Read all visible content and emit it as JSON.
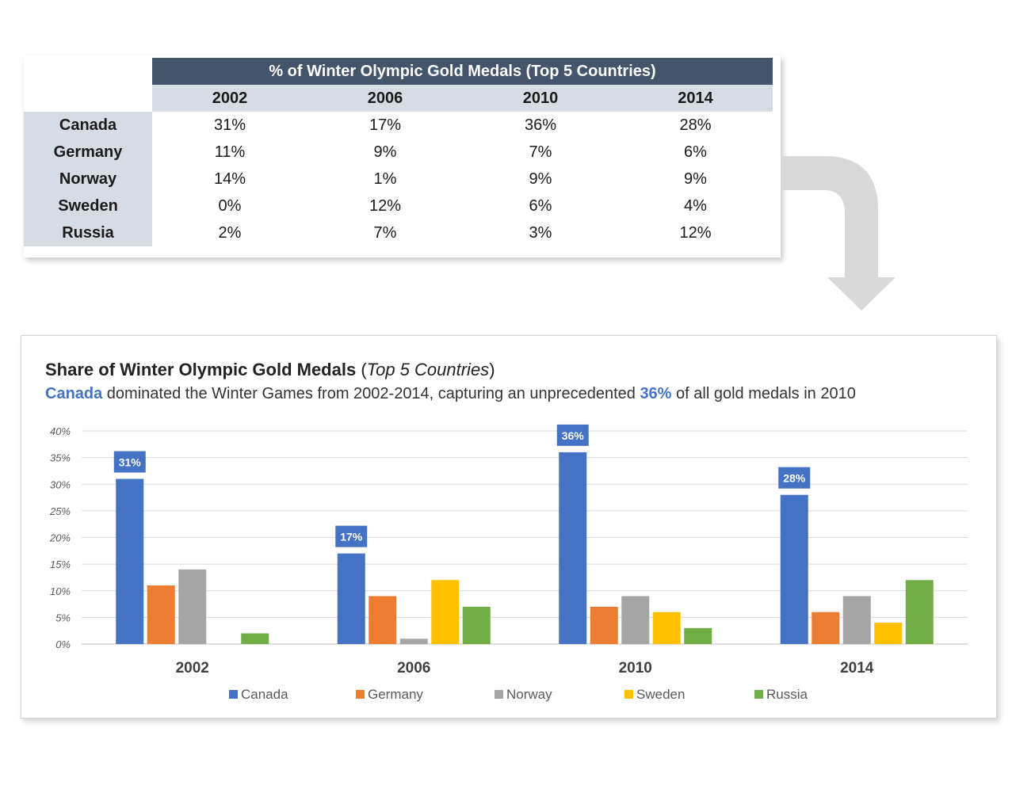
{
  "table": {
    "title": "% of Winter Olympic Gold Medals (Top 5 Countries)",
    "years": [
      "2002",
      "2006",
      "2010",
      "2014"
    ],
    "rows": [
      {
        "country": "Canada",
        "values": [
          "31%",
          "17%",
          "36%",
          "28%"
        ]
      },
      {
        "country": "Germany",
        "values": [
          "11%",
          "9%",
          "7%",
          "6%"
        ]
      },
      {
        "country": "Norway",
        "values": [
          "14%",
          "1%",
          "9%",
          "9%"
        ]
      },
      {
        "country": "Sweden",
        "values": [
          "0%",
          "12%",
          "6%",
          "4%"
        ]
      },
      {
        "country": "Russia",
        "values": [
          "2%",
          "7%",
          "3%",
          "12%"
        ]
      }
    ]
  },
  "chart_header": {
    "title_main": "Share of Winter Olympic Gold Medals",
    "title_open": " (",
    "title_sub": "Top 5 Countries",
    "title_close": ")",
    "caption_lead": "Canada",
    "caption_mid": " dominated the Winter Games from 2002-2014, capturing an unprecedented ",
    "caption_value": "36%",
    "caption_tail": " of all gold medals in 2010"
  },
  "chart_data": {
    "type": "bar",
    "title": "Share of Winter Olympic Gold Medals (Top 5 Countries)",
    "categories": [
      "2002",
      "2006",
      "2010",
      "2014"
    ],
    "series": [
      {
        "name": "Canada",
        "color": "#4472c4",
        "values": [
          31,
          17,
          36,
          28
        ]
      },
      {
        "name": "Germany",
        "color": "#ed7d31",
        "values": [
          11,
          9,
          7,
          6
        ]
      },
      {
        "name": "Norway",
        "color": "#a5a5a5",
        "values": [
          14,
          1,
          9,
          9
        ]
      },
      {
        "name": "Sweden",
        "color": "#ffc000",
        "values": [
          0,
          12,
          6,
          4
        ]
      },
      {
        "name": "Russia",
        "color": "#70ad47",
        "values": [
          2,
          7,
          3,
          12
        ]
      }
    ],
    "ylim": [
      0,
      40
    ],
    "yticks": [
      0,
      5,
      10,
      15,
      20,
      25,
      30,
      35,
      40
    ],
    "ytick_labels": [
      "0%",
      "5%",
      "10%",
      "15%",
      "20%",
      "25%",
      "30%",
      "35%",
      "40%"
    ],
    "data_labels": {
      "series": "Canada",
      "labels": [
        "31%",
        "17%",
        "36%",
        "28%"
      ]
    },
    "grid": true,
    "legend_position": "bottom"
  },
  "colors": {
    "header_bg": "#44546a",
    "band_bg": "#d6dce4",
    "accent": "#4472c4",
    "arrow": "#d9d9d9"
  }
}
